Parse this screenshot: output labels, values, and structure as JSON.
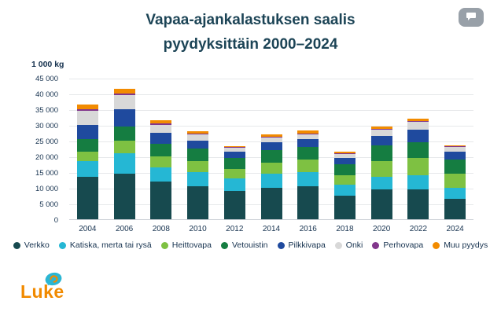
{
  "header": {
    "title_line1": "Vapaa-ajankalastuksen saalis",
    "title_line2": "pyydyksittäin 2000–2024"
  },
  "controls": {
    "menu_button_icon": "speech-bubble-icon"
  },
  "chart_data": {
    "type": "bar",
    "stacked": true,
    "title": "Vapaa-ajankalastuksen saalis pyydyksittäin 2000–2024",
    "unit_label": "1 000 kg",
    "xlabel": "",
    "ylabel": "1 000 kg",
    "ylim": [
      0,
      45000
    ],
    "ytick_step": 5000,
    "grid": true,
    "legend_position": "bottom",
    "categories": [
      "2004",
      "2006",
      "2008",
      "2010",
      "2012",
      "2014",
      "2016",
      "2018",
      "2020",
      "2022",
      "2024"
    ],
    "series": [
      {
        "name": "Verkko",
        "color": "#174a4f",
        "values": [
          13500,
          14500,
          12000,
          10500,
          9000,
          10000,
          10500,
          7500,
          9500,
          9500,
          6500
        ]
      },
      {
        "name": "Katiska, merta tai rysä",
        "color": "#25b7d4",
        "values": [
          5000,
          6500,
          4500,
          4500,
          4000,
          4500,
          4500,
          3500,
          4000,
          4500,
          3500
        ]
      },
      {
        "name": "Heittovapa",
        "color": "#7ec142",
        "values": [
          3000,
          4000,
          3500,
          3500,
          3000,
          3500,
          4000,
          3000,
          5000,
          5500,
          4500
        ]
      },
      {
        "name": "Vetouistin",
        "color": "#157d41",
        "values": [
          4000,
          4500,
          4000,
          4000,
          3500,
          4000,
          4000,
          3500,
          5000,
          5000,
          4500
        ]
      },
      {
        "name": "Pilkkivapa",
        "color": "#1f4a9e",
        "values": [
          4500,
          5500,
          3500,
          2500,
          2000,
          2500,
          2500,
          2000,
          3000,
          4000,
          2500
        ]
      },
      {
        "name": "Onki",
        "color": "#d8d8d8",
        "values": [
          4500,
          4500,
          2500,
          2000,
          1200,
          1500,
          1500,
          1300,
          2000,
          2500,
          1500
        ]
      },
      {
        "name": "Perhovapa",
        "color": "#82368c",
        "values": [
          500,
          400,
          400,
          300,
          200,
          300,
          300,
          200,
          300,
          300,
          200
        ]
      },
      {
        "name": "Muu pyydys",
        "color": "#f28b00",
        "values": [
          1500,
          1500,
          1000,
          800,
          300,
          800,
          1000,
          500,
          800,
          800,
          300
        ]
      }
    ]
  },
  "logo": {
    "text": "Luke"
  }
}
